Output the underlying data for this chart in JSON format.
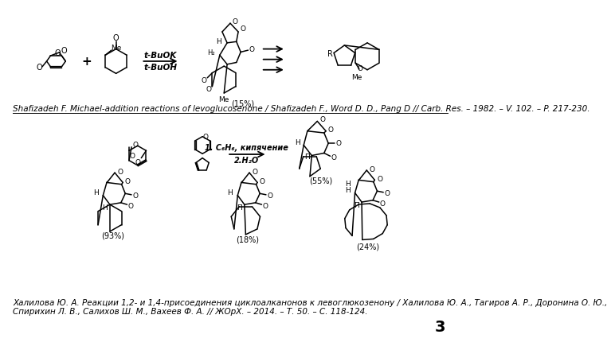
{
  "background_color": "#ffffff",
  "reference1": "Shafizadeh F. Michael-addition reactions of levoglucosenone / Shafizadeh F., Word D. D., Pang D // Carb. Res. – 1982. – V. 102. – P. 217-230.",
  "reference2_line1": "Халилова Ю. А. Реакции 1,2- и 1,4-присоединения циклоалканонов к левоглюкозенону / Халилова Ю. А., Тагиров А. Р., Доронина О. Ю.,",
  "reference2_line2": "Спирихин Л. В., Салихов Ш. М., Вахеев Ф. А. // ЖОрХ. – 2014. – Т. 50. – С. 118-124.",
  "page_number": "3",
  "ref1_fontsize": 7.5,
  "ref2_fontsize": 7.5,
  "page_fontsize": 14,
  "cond1_line1": "t-BuOK",
  "cond1_line2": "t-BuOH",
  "cond2_line1": "1. C₆H₆, кипячение",
  "cond2_line2": "2.H₂O",
  "yield15": "(15%)",
  "yield55": "(55%)",
  "yield93": "(93%)",
  "yield18": "(18%)",
  "yield24": "(24%)"
}
